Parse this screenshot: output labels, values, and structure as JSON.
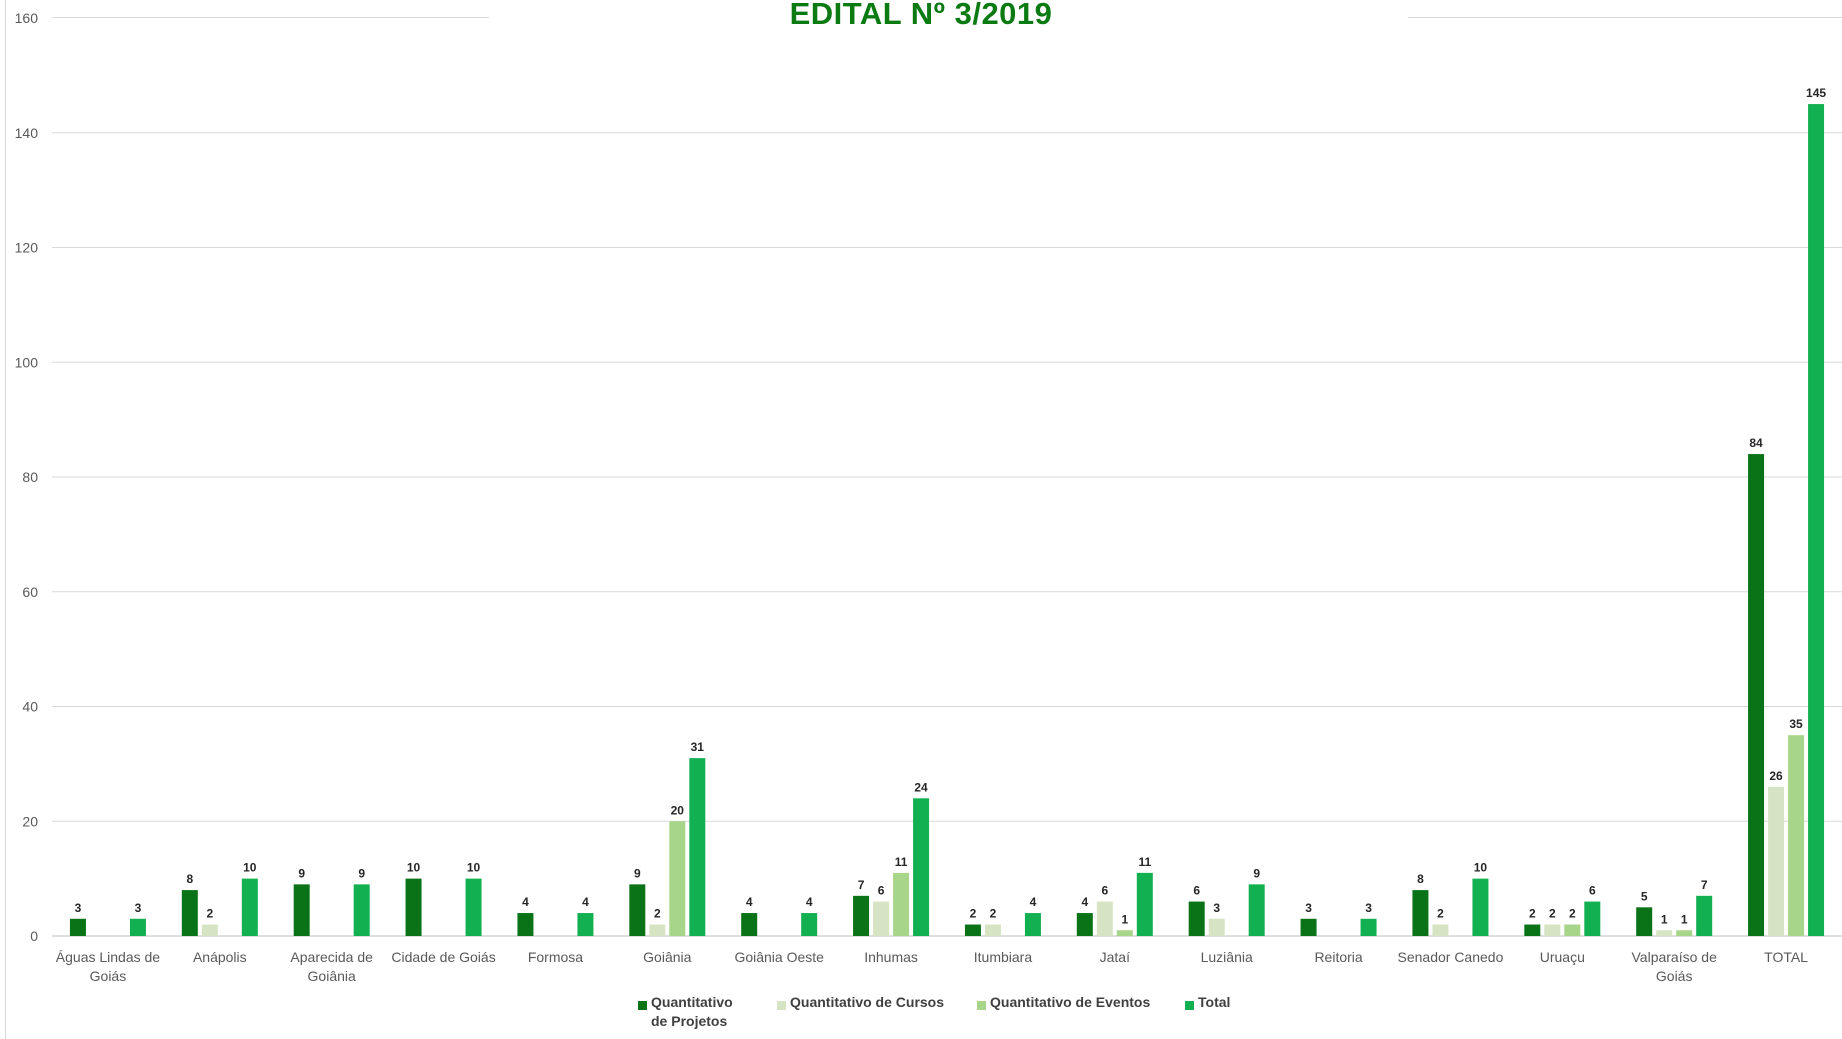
{
  "chart_data": {
    "type": "bar",
    "title": "EDITAL Nº 3/2019",
    "xlabel": "",
    "ylabel": "",
    "ylim": [
      0,
      160
    ],
    "yticks": [
      0,
      20,
      40,
      60,
      80,
      100,
      120,
      140,
      160
    ],
    "grid": true,
    "legend_position": "bottom",
    "categories": [
      [
        "Águas Lindas de",
        "Goiás"
      ],
      [
        "Anápolis"
      ],
      [
        "Aparecida de",
        "Goiânia"
      ],
      [
        "Cidade de Goiás"
      ],
      [
        "Formosa"
      ],
      [
        "Goiânia"
      ],
      [
        "Goiânia Oeste"
      ],
      [
        "Inhumas"
      ],
      [
        "Itumbiara"
      ],
      [
        "Jataí"
      ],
      [
        "Luziânia"
      ],
      [
        "Reitoria"
      ],
      [
        "Senador Canedo"
      ],
      [
        "Uruaçu"
      ],
      [
        "Valparaíso de",
        "Goiás"
      ],
      [
        "TOTAL"
      ]
    ],
    "series": [
      {
        "name": "Quantitativo de Projetos",
        "legend_lines": [
          "Quantitativo",
          "de Projetos"
        ],
        "color": "#0a7317",
        "values": [
          3,
          8,
          9,
          10,
          4,
          9,
          4,
          7,
          2,
          4,
          6,
          3,
          8,
          2,
          5,
          84
        ]
      },
      {
        "name": "Quantitativo de Cursos",
        "legend_lines": [
          "Quantitativo de Cursos"
        ],
        "color": "#d6e4c4",
        "values": [
          null,
          2,
          null,
          null,
          null,
          2,
          null,
          6,
          2,
          6,
          3,
          null,
          2,
          2,
          1,
          26
        ]
      },
      {
        "name": "Quantitativo de Eventos",
        "legend_lines": [
          "Quantitativo de Eventos"
        ],
        "color": "#a7d68a",
        "values": [
          null,
          null,
          null,
          null,
          null,
          20,
          null,
          11,
          null,
          1,
          null,
          null,
          null,
          2,
          1,
          35
        ]
      },
      {
        "name": "Total",
        "legend_lines": [
          "Total"
        ],
        "color": "#12b051",
        "values": [
          3,
          10,
          9,
          10,
          4,
          31,
          4,
          24,
          4,
          11,
          9,
          3,
          10,
          6,
          7,
          145
        ]
      }
    ]
  }
}
